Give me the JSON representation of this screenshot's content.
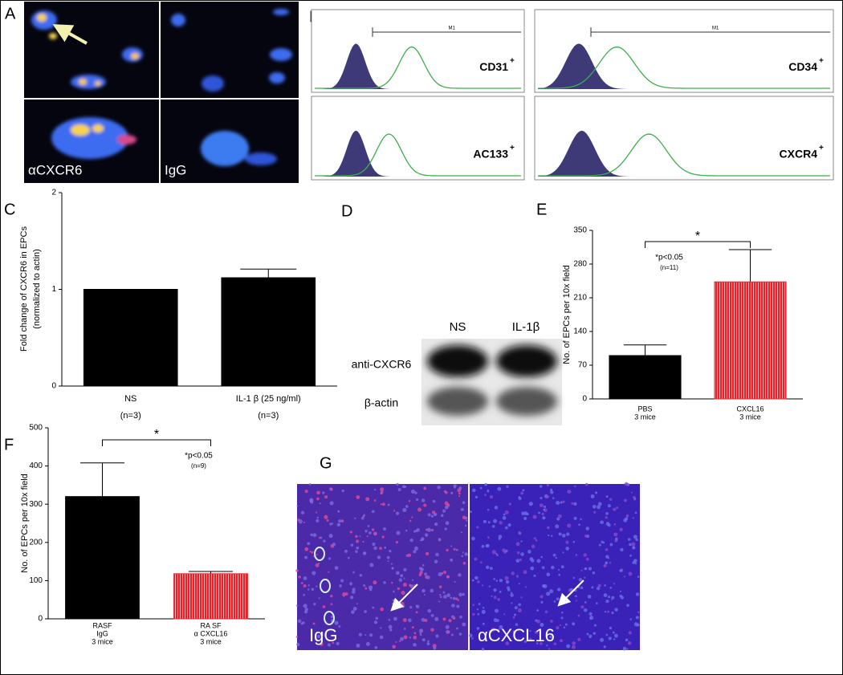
{
  "panels": {
    "A": {
      "label": "A",
      "texts": [
        "αCXCR6",
        "IgG"
      ]
    },
    "B": {
      "label": "B",
      "gate": "M1",
      "markers": [
        {
          "name": "CD31",
          "sup": "+"
        },
        {
          "name": "CD34",
          "sup": "+"
        },
        {
          "name": "AC133",
          "sup": "+"
        },
        {
          "name": "CXCR4",
          "sup": "+"
        }
      ]
    },
    "D": {
      "label": "D",
      "lanes": [
        "NS",
        "IL-1β"
      ],
      "rows": [
        "anti-CXCR6",
        "β-actin"
      ]
    },
    "G": {
      "label": "G",
      "texts": [
        "IgG",
        "αCXCL16"
      ]
    }
  },
  "chart_data": [
    {
      "type": "bar",
      "panel": "C",
      "ylabel": [
        "Fold change of CXCR6 in EPCs",
        "(normalized to actin)"
      ],
      "category_lines": [
        [
          "NS",
          "(n=3)"
        ],
        [
          "IL-1 β  (25 ng/ml)",
          "(n=3)"
        ]
      ],
      "values": [
        1,
        1.12
      ],
      "errors": [
        null,
        0.09
      ],
      "colors": [
        "#000000",
        "#000000"
      ],
      "ylim": [
        0,
        2
      ],
      "yticks": [
        0,
        1,
        2
      ]
    },
    {
      "type": "bar",
      "panel": "E",
      "ylabel": [
        "No. of EPCs per 10x field"
      ],
      "category_lines": [
        [
          "PBS",
          "3 mice"
        ],
        [
          "CXCL16",
          "3 mice"
        ]
      ],
      "values": [
        90,
        243
      ],
      "errors": [
        22,
        67
      ],
      "colors": [
        "#000000",
        "#e8202a"
      ],
      "ylim": [
        0,
        350
      ],
      "yticks": [
        0,
        70,
        140,
        210,
        280,
        350
      ],
      "significance": {
        "mark": "*",
        "note": "*p<0.05",
        "n": "(n=11)"
      }
    },
    {
      "type": "bar",
      "panel": "F",
      "ylabel": [
        "No. of EPCs per 10x field"
      ],
      "category_lines": [
        [
          "RASF",
          "IgG",
          "3 mice"
        ],
        [
          "RA SF",
          "α CXCL16",
          "3 mice"
        ]
      ],
      "values": [
        320,
        118
      ],
      "errors": [
        88,
        6
      ],
      "colors": [
        "#000000",
        "#e8202a"
      ],
      "ylim": [
        0,
        500
      ],
      "yticks": [
        0,
        100,
        200,
        300,
        400,
        500
      ],
      "significance": {
        "mark": "*",
        "note": "*p<0.05",
        "n": "(n=9)"
      }
    }
  ]
}
